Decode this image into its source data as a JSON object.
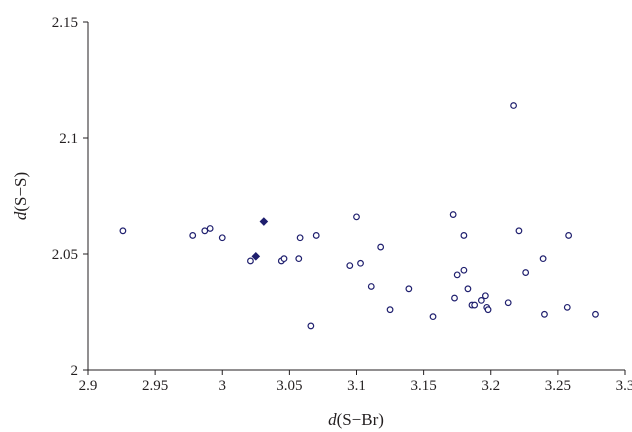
{
  "chart_data": {
    "type": "scatter",
    "title": "",
    "xlabel": {
      "italic": "d",
      "rest": "(S−Br)"
    },
    "ylabel": {
      "italic": "d",
      "rest": "(S−S)"
    },
    "xlim": [
      2.9,
      3.3
    ],
    "ylim": [
      2.0,
      2.15
    ],
    "x_ticks": [
      "2.9",
      "2.95",
      "3",
      "3.05",
      "3.1",
      "3.15",
      "3.2",
      "3.25",
      "3.3"
    ],
    "y_ticks": [
      "2",
      "2.05",
      "2.1",
      "2.15"
    ],
    "grid": false,
    "legend": "none",
    "colors": {
      "marker": "#1f1f6e",
      "axis": "#231f20"
    },
    "series": [
      {
        "marker": "open-circle",
        "points": [
          [
            2.926,
            2.06
          ],
          [
            2.978,
            2.058
          ],
          [
            2.987,
            2.06
          ],
          [
            2.991,
            2.061
          ],
          [
            3.0,
            2.057
          ],
          [
            3.021,
            2.047
          ],
          [
            3.044,
            2.047
          ],
          [
            3.046,
            2.048
          ],
          [
            3.057,
            2.048
          ],
          [
            3.058,
            2.057
          ],
          [
            3.066,
            2.019
          ],
          [
            3.07,
            2.058
          ],
          [
            3.095,
            2.045
          ],
          [
            3.1,
            2.066
          ],
          [
            3.103,
            2.046
          ],
          [
            3.111,
            2.036
          ],
          [
            3.118,
            2.053
          ],
          [
            3.125,
            2.026
          ],
          [
            3.139,
            2.035
          ],
          [
            3.157,
            2.023
          ],
          [
            3.172,
            2.067
          ],
          [
            3.173,
            2.031
          ],
          [
            3.175,
            2.041
          ],
          [
            3.18,
            2.043
          ],
          [
            3.18,
            2.058
          ],
          [
            3.183,
            2.035
          ],
          [
            3.186,
            2.028
          ],
          [
            3.188,
            2.028
          ],
          [
            3.193,
            2.03
          ],
          [
            3.196,
            2.032
          ],
          [
            3.197,
            2.027
          ],
          [
            3.198,
            2.026
          ],
          [
            3.213,
            2.029
          ],
          [
            3.217,
            2.114
          ],
          [
            3.221,
            2.06
          ],
          [
            3.226,
            2.042
          ],
          [
            3.239,
            2.048
          ],
          [
            3.24,
            2.024
          ],
          [
            3.257,
            2.027
          ],
          [
            3.258,
            2.058
          ],
          [
            3.278,
            2.024
          ]
        ]
      },
      {
        "marker": "filled-diamond",
        "points": [
          [
            3.025,
            2.049
          ],
          [
            3.031,
            2.064
          ]
        ]
      }
    ]
  }
}
